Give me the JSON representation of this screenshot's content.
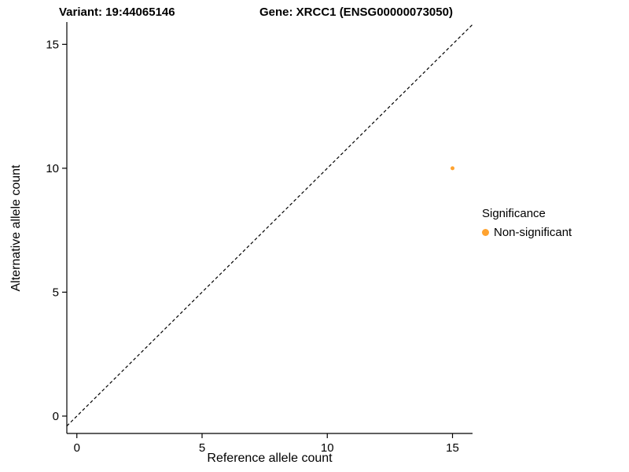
{
  "chart_data": {
    "type": "scatter",
    "title_variant": "Variant: 19:44065146",
    "title_gene": "Gene: XRCC1 (ENSG00000073050)",
    "xlabel": "Reference allele count",
    "ylabel": "Alternative allele count",
    "xticks": [
      0,
      5,
      10,
      15
    ],
    "yticks": [
      0,
      5,
      10,
      15
    ],
    "xlim": [
      -0.4,
      15.8
    ],
    "ylim": [
      -0.7,
      15.9
    ],
    "grid": false,
    "reference_line": {
      "type": "identity",
      "style": "dashed",
      "color": "#000000"
    },
    "series": [
      {
        "name": "Non-significant",
        "color": "#FFA330",
        "point_radius": 2.5,
        "points": [
          {
            "x": 15,
            "y": 10
          }
        ]
      }
    ],
    "legend": {
      "title": "Significance",
      "position": "right",
      "entries": [
        {
          "label": "Non-significant",
          "color": "#FFA330"
        }
      ]
    }
  }
}
